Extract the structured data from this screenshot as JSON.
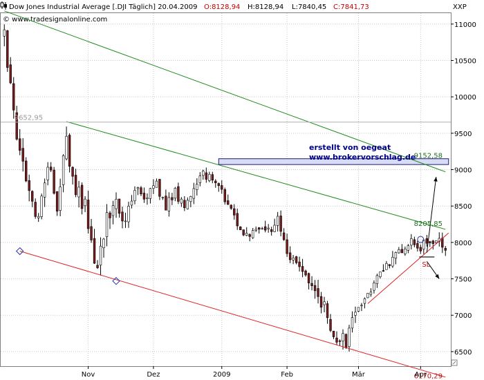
{
  "header": {
    "icon": "candlestick-icon",
    "title": "Dow Jones Industrial Average [.DJI  Täglich] 20.04.2009",
    "o_label": "O:8128,94",
    "h_label": "H:8128,94",
    "l_label": "L:7840,45",
    "c_label": "C:7841,73",
    "source": "© www.tradesignalonline.com",
    "y_unit": "XXP"
  },
  "annotation": {
    "line1": "erstellt von oegeat",
    "line2": "www.brokervorschlag.de"
  },
  "colors": {
    "up_candle": "#ffffff",
    "down_candle": "#7b1c1c",
    "resistance": "#1e8c1e",
    "support": "#e02020",
    "marker": "#2233aa",
    "zone_fill": "#d8dcf4",
    "grid": "#c8c8c8"
  },
  "chart_data": {
    "type": "candlestick",
    "ylim": [
      6300,
      11150
    ],
    "y_ticks": [
      11000,
      10500,
      10000,
      9500,
      9000,
      8500,
      8000,
      7500,
      7000,
      6500
    ],
    "y_tick_labels": [
      "11000",
      "10500",
      "10000",
      "9500",
      "9000",
      "8500",
      "8000",
      "7500",
      "7000",
      "6500"
    ],
    "x_ticks": [
      "Nov",
      "Dez",
      "2009",
      "Feb",
      "Mär",
      "Apr"
    ],
    "x_tick_index": [
      27,
      48,
      70,
      91,
      114,
      134
    ],
    "anchors": [
      [
        0,
        10860
      ],
      [
        5,
        9200
      ],
      [
        8,
        8750
      ],
      [
        11,
        8300
      ],
      [
        14,
        9050
      ],
      [
        17,
        8500
      ],
      [
        20,
        9400
      ],
      [
        23,
        8700
      ],
      [
        26,
        8500
      ],
      [
        30,
        7620
      ],
      [
        33,
        8300
      ],
      [
        36,
        8500
      ],
      [
        39,
        8350
      ],
      [
        42,
        8750
      ],
      [
        45,
        8550
      ],
      [
        49,
        8800
      ],
      [
        52,
        8500
      ],
      [
        55,
        8700
      ],
      [
        58,
        8500
      ],
      [
        61,
        8750
      ],
      [
        64,
        9000
      ],
      [
        67,
        8800
      ],
      [
        70,
        8700
      ],
      [
        73,
        8400
      ],
      [
        76,
        8200
      ],
      [
        79,
        8050
      ],
      [
        82,
        8250
      ],
      [
        85,
        8150
      ],
      [
        88,
        8300
      ],
      [
        91,
        7900
      ],
      [
        94,
        7700
      ],
      [
        97,
        7500
      ],
      [
        100,
        7300
      ],
      [
        103,
        7150
      ],
      [
        106,
        6700
      ],
      [
        108,
        6700
      ],
      [
        110,
        6650
      ],
      [
        113,
        7000
      ],
      [
        116,
        7250
      ],
      [
        119,
        7450
      ],
      [
        122,
        7650
      ],
      [
        125,
        7800
      ],
      [
        128,
        7900
      ],
      [
        131,
        8000
      ],
      [
        134,
        7950
      ],
      [
        137,
        8050
      ],
      [
        140,
        8050
      ],
      [
        142,
        7840
      ]
    ],
    "levels": [
      {
        "label": "9652,95",
        "value": 9652.95
      },
      {
        "label": "9152,58",
        "value": 9152.58
      },
      {
        "label": "8205,85",
        "value": 8205.85
      },
      {
        "label": "6170,29",
        "value": 6170.29
      },
      {
        "label": "SL",
        "value": 7800
      }
    ],
    "resistance_upper": [
      [
        0,
        11180
      ],
      [
        142,
        8970
      ]
    ],
    "resistance_lower": [
      [
        20,
        9660
      ],
      [
        142,
        8180
      ]
    ],
    "support_lower": [
      [
        5,
        7880
      ],
      [
        142,
        6150
      ]
    ],
    "support_upper": [
      [
        117,
        7160
      ],
      [
        143,
        8130
      ]
    ],
    "zone": {
      "from_index": 69,
      "to_index": 143,
      "low": 9070,
      "high": 9150
    },
    "pivot_markers": [
      [
        5,
        7880
      ],
      [
        36,
        7470
      ],
      [
        134,
        8040
      ]
    ],
    "projection_up": [
      [
        136,
        7860
      ],
      [
        139,
        8900
      ]
    ],
    "projection_down": [
      [
        136,
        7740
      ],
      [
        140,
        7500
      ]
    ]
  }
}
